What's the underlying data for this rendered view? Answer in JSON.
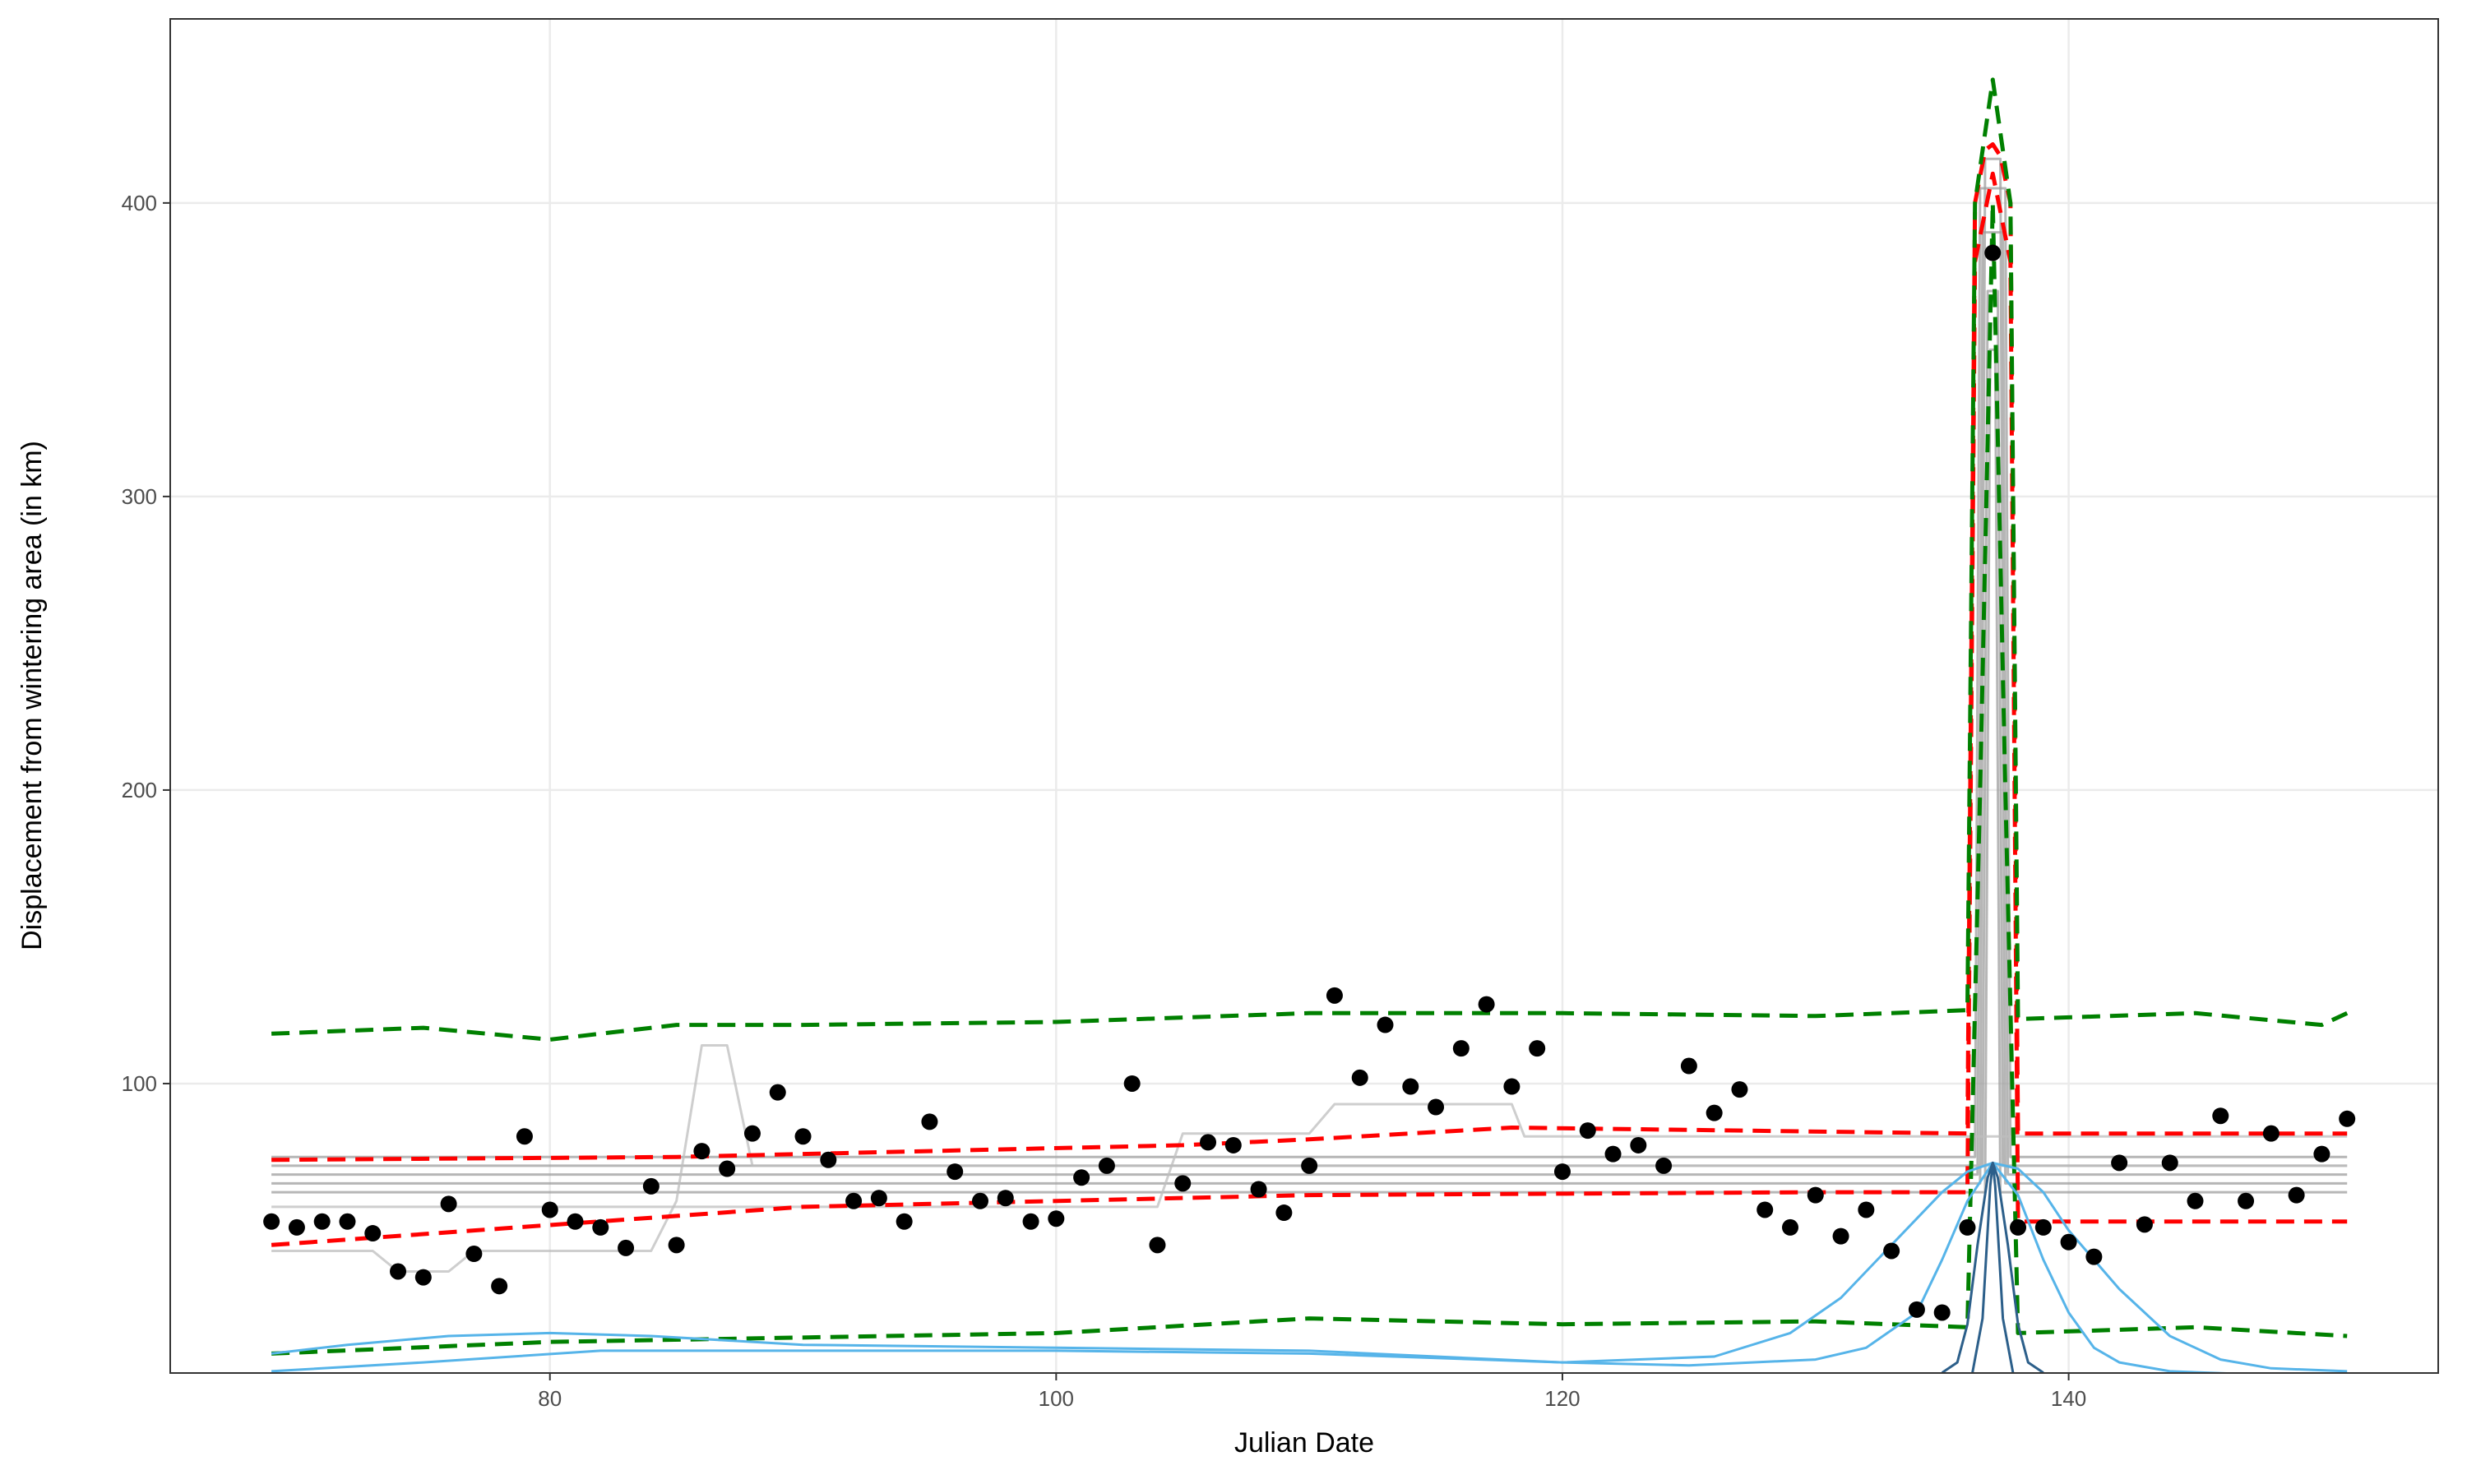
{
  "chart_data": {
    "type": "line",
    "x_label": "Julian Date",
    "y_label": "Displacement from wintering area (in km)",
    "xlim": [
      65,
      154.6
    ],
    "ylim": [
      1.4,
      462.7
    ],
    "xticks": [
      80,
      100,
      120,
      140
    ],
    "yticks": [
      100,
      200,
      300,
      400
    ],
    "grid": true,
    "points": {
      "color": "#000000",
      "x": [
        69,
        70,
        71,
        72,
        73,
        74,
        75,
        76,
        77,
        78,
        79,
        80,
        81,
        82,
        83,
        84,
        85,
        86,
        87,
        88,
        89,
        90,
        91,
        92,
        93,
        94,
        95,
        96,
        97,
        98,
        99,
        100,
        101,
        102,
        103,
        104,
        105,
        106,
        107,
        108,
        109,
        110,
        111,
        112,
        113,
        114,
        115,
        116,
        117,
        118,
        119,
        120,
        121,
        122,
        123,
        124,
        125,
        126,
        127,
        128,
        129,
        130,
        131,
        132,
        133,
        134,
        135,
        136,
        137,
        138,
        139,
        140,
        141,
        142,
        143,
        144,
        145,
        146,
        147,
        148,
        149,
        150,
        151
      ],
      "values": [
        53,
        51,
        53,
        53,
        49,
        36,
        34,
        59,
        42,
        31,
        82,
        57,
        53,
        51,
        44,
        65,
        45,
        77,
        71,
        83,
        97,
        82,
        74,
        60,
        61,
        53,
        87,
        70,
        60,
        61,
        53,
        54,
        68,
        72,
        100,
        45,
        66,
        80,
        79,
        64,
        56,
        72,
        130,
        102,
        120,
        99,
        92,
        112,
        127,
        99,
        112,
        70,
        84,
        76,
        79,
        72,
        106,
        90,
        98,
        57,
        51,
        62,
        48,
        57,
        43,
        23,
        22,
        51,
        383,
        51,
        51,
        46,
        41,
        73,
        52,
        73,
        60,
        89,
        60,
        83,
        62,
        76,
        88
      ]
    },
    "series": [
      {
        "color": "#9e9e9e",
        "dashed": false,
        "x": [
          69,
          136.5,
          136.7,
          137.3,
          137.5,
          151
        ],
        "values": [
          66,
          66,
          415,
          415,
          66,
          66
        ]
      },
      {
        "color": "#9e9e9e",
        "dashed": false,
        "x": [
          69,
          136.4,
          136.6,
          137.4,
          137.6,
          151
        ],
        "values": [
          69,
          69,
          390,
          390,
          69,
          69
        ]
      },
      {
        "color": "#9e9e9e",
        "dashed": false,
        "x": [
          69,
          136.6,
          136.8,
          137.2,
          137.4,
          151
        ],
        "values": [
          72,
          72,
          370,
          370,
          72,
          72
        ]
      },
      {
        "color": "#9e9e9e",
        "dashed": false,
        "x": [
          69,
          136.7,
          136.9,
          137.1,
          137.3,
          151
        ],
        "values": [
          63,
          63,
          350,
          350,
          63,
          63
        ]
      },
      {
        "color": "#9e9e9e",
        "dashed": false,
        "x": [
          69,
          136.3,
          136.5,
          137.5,
          137.7,
          151
        ],
        "values": [
          75,
          75,
          405,
          405,
          75,
          75
        ]
      },
      {
        "color": "#bdbdbd",
        "dashed": false,
        "x": [
          69,
          73,
          74,
          76,
          77,
          84,
          85,
          86,
          87,
          88,
          151
        ],
        "values": [
          43,
          43,
          36,
          36,
          43,
          43,
          60,
          113,
          113,
          72,
          72
        ]
      },
      {
        "color": "#bdbdbd",
        "dashed": false,
        "x": [
          69,
          104,
          105,
          110,
          111,
          118,
          118.5,
          151
        ],
        "values": [
          58,
          58,
          83,
          83,
          93,
          93,
          82,
          82
        ]
      },
      {
        "color": "#ff0000",
        "dashed": true,
        "x": [
          69,
          85,
          105,
          110,
          118,
          136,
          136.3,
          136.7,
          137,
          137.3,
          137.7,
          138,
          151
        ],
        "values": [
          74,
          75,
          79,
          81,
          85,
          83,
          400,
          418,
          420,
          416,
          400,
          83,
          83
        ]
      },
      {
        "color": "#ff0000",
        "dashed": true,
        "x": [
          69,
          90,
          110,
          130,
          136,
          136.3,
          137,
          137.7,
          138,
          151
        ],
        "values": [
          45,
          58,
          62,
          63,
          63,
          380,
          410,
          380,
          53,
          53
        ]
      },
      {
        "color": "#008000",
        "dashed": true,
        "x": [
          69,
          75,
          80,
          85,
          90,
          100,
          110,
          120,
          130,
          136,
          136.3,
          137,
          137.7,
          138,
          145,
          150,
          151
        ],
        "values": [
          117,
          119,
          115,
          120,
          120,
          121,
          124,
          124,
          123,
          125,
          400,
          442,
          400,
          122,
          124,
          120,
          124
        ]
      },
      {
        "color": "#008000",
        "dashed": true,
        "x": [
          69,
          80,
          100,
          110,
          120,
          130,
          136,
          136.5,
          137,
          137.5,
          138,
          145,
          151
        ],
        "values": [
          8,
          12,
          15,
          20,
          18,
          19,
          17,
          200,
          400,
          200,
          15,
          17,
          14
        ]
      },
      {
        "color": "#56b4e9",
        "dashed": false,
        "x": [
          69,
          72,
          76,
          80,
          84,
          90,
          100,
          110,
          120,
          126,
          129,
          131,
          133,
          135,
          136,
          137,
          138,
          139,
          140,
          142,
          144,
          146,
          148,
          151
        ],
        "values": [
          8,
          11,
          14,
          15,
          14,
          11,
          10,
          9,
          5,
          7,
          15,
          27,
          45,
          63,
          70,
          73,
          71,
          63,
          50,
          30,
          14,
          6,
          3,
          2
        ]
      },
      {
        "color": "#56b4e9",
        "dashed": false,
        "x": [
          69,
          75,
          82,
          90,
          100,
          110,
          120,
          125,
          130,
          132,
          134,
          135,
          136,
          137,
          138,
          139,
          140,
          141,
          142,
          144,
          147,
          151
        ],
        "values": [
          2,
          5,
          9,
          9,
          9,
          8,
          5,
          4,
          6,
          10,
          22,
          40,
          60,
          73,
          62,
          40,
          22,
          10,
          5,
          2,
          1,
          1
        ]
      },
      {
        "color": "#2c5f8a",
        "dashed": false,
        "x": [
          135,
          135.6,
          136,
          136.4,
          136.8,
          137,
          137.2,
          137.6,
          138,
          138.4,
          139
        ],
        "values": [
          1.5,
          5,
          18,
          45,
          68,
          73,
          68,
          45,
          18,
          5,
          1.5
        ]
      },
      {
        "color": "#2c5f8a",
        "dashed": false,
        "x": [
          136.2,
          136.6,
          136.9,
          137,
          137.1,
          137.4,
          137.8
        ],
        "values": [
          1.5,
          20,
          65,
          73,
          65,
          20,
          1.5
        ]
      }
    ]
  }
}
